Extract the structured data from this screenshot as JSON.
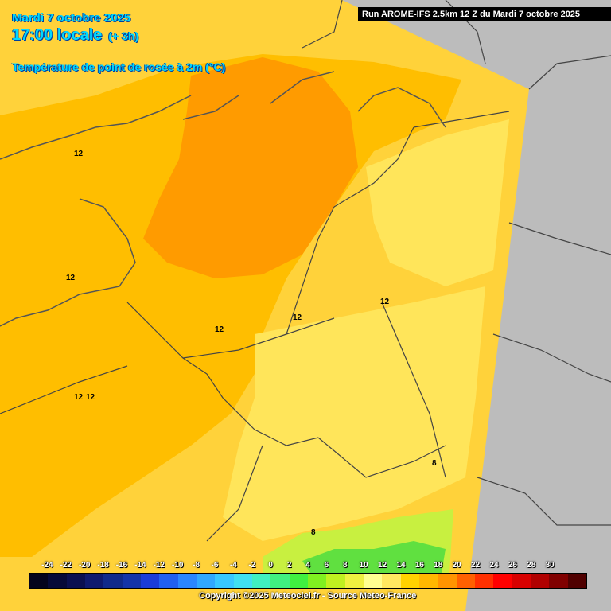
{
  "header": {
    "date": "Mardi 7 octobre 2025",
    "time": "17:00 locale",
    "lead": "(+ 3h)",
    "parameter": "Température de point de rosée à 2m (°C)"
  },
  "run_info": "Run AROME-IFS 2.5km 12 Z du Mardi 7 octobre 2025",
  "contour_labels": [
    "12",
    "12",
    "12",
    "12",
    "12",
    "12",
    "12",
    "8",
    "8"
  ],
  "legend": {
    "ticks": [
      "-24",
      "-22",
      "-20",
      "-18",
      "-16",
      "-14",
      "-12",
      "-10",
      "-8",
      "-6",
      "-4",
      "-2",
      "0",
      "2",
      "4",
      "6",
      "8",
      "10",
      "12",
      "14",
      "16",
      "18",
      "20",
      "22",
      "24",
      "26",
      "28",
      "30"
    ],
    "colors": [
      "#04041c",
      "#060a38",
      "#0a1050",
      "#0e1a6e",
      "#102a8a",
      "#1434a8",
      "#1a3cd8",
      "#2060f0",
      "#2a86ff",
      "#30a8ff",
      "#38c8ff",
      "#40e0f0",
      "#40f0c0",
      "#40f080",
      "#40f040",
      "#80f020",
      "#c0f020",
      "#f0f040",
      "#ffff90",
      "#ffe860",
      "#ffd200",
      "#ffb800",
      "#ff9400",
      "#ff6000",
      "#ff3000",
      "#ff0000",
      "#d80000",
      "#b00000",
      "#800000",
      "#500000"
    ]
  },
  "copyright": "Copyright ©2025 Meteociel.fr - Source Meteo-France"
}
